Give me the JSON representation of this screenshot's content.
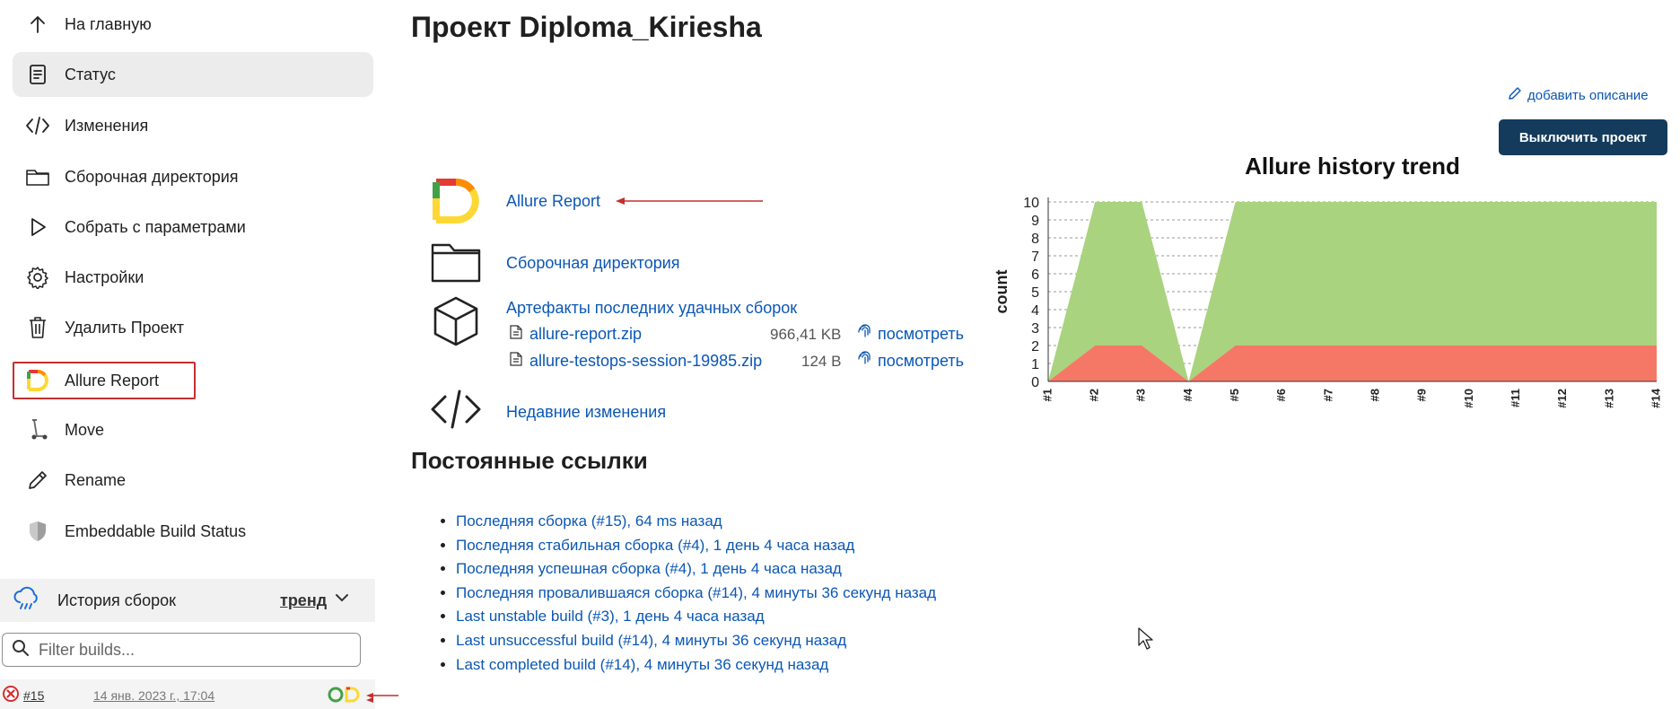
{
  "sidebar": {
    "items": [
      {
        "label": "На главную",
        "icon": "arrow-up-icon"
      },
      {
        "label": "Статус",
        "icon": "status-doc-icon",
        "active": true
      },
      {
        "label": "Изменения",
        "icon": "code-icon"
      },
      {
        "label": "Сборочная директория",
        "icon": "folder-icon"
      },
      {
        "label": "Собрать с параметрами",
        "icon": "play-icon"
      },
      {
        "label": "Настройки",
        "icon": "gear-icon"
      },
      {
        "label": "Удалить Проект",
        "icon": "trash-icon"
      },
      {
        "label": "Allure Report",
        "icon": "allure-logo-icon",
        "highlighted": true
      },
      {
        "label": "Move",
        "icon": "scooter-icon"
      },
      {
        "label": "Rename",
        "icon": "pencil-icon"
      },
      {
        "label": "Embeddable Build Status",
        "icon": "shield-icon"
      }
    ],
    "history": {
      "title": "История сборок",
      "trend_label": "тренд",
      "filter_placeholder": "Filter builds...",
      "builds": [
        {
          "number": "#15",
          "date": "14 янв. 2023 г., 17:04",
          "status": "failed"
        }
      ]
    }
  },
  "main": {
    "title": "Проект Diploma_Kiriesha",
    "add_description": "добавить описание",
    "disable_button": "Выключить проект",
    "links": {
      "allure_report": "Allure Report",
      "workspace": "Сборочная директория",
      "artifacts_title": "Артефакты последних удачных сборок",
      "recent_changes": "Недавние изменения"
    },
    "artifacts": [
      {
        "name": "allure-report.zip",
        "size": "966,41 KB",
        "view": "посмотреть"
      },
      {
        "name": "allure-testops-session-19985.zip",
        "size": "124 B",
        "view": "посмотреть"
      }
    ],
    "permalinks_title": "Постоянные ссылки",
    "permalinks": [
      "Последняя сборка (#15), 64 ms назад",
      "Последняя стабильная сборка (#4), 1 день 4 часа назад",
      "Последняя успешная сборка (#4), 1 день 4 часа назад",
      "Последняя провалившаяся сборка (#14), 4 минуты 36 секунд назад",
      "Last unstable build (#3), 1 день 4 часа назад",
      "Last unsuccessful build (#14), 4 минуты 36 секунд назад",
      "Last completed build (#14), 4 минуты 36 секунд назад"
    ]
  },
  "colors": {
    "link": "#0b57b5",
    "button_bg": "#143b5c",
    "passed": "#a9d37e",
    "failed": "#f57866",
    "annotation_arrow": "#c42f2f"
  },
  "chart_data": {
    "type": "area",
    "title": "Allure history trend",
    "xlabel": "",
    "ylabel": "count",
    "x": [
      "#1",
      "#2",
      "#3",
      "#4",
      "#5",
      "#6",
      "#7",
      "#8",
      "#9",
      "#10",
      "#11",
      "#12",
      "#13",
      "#14"
    ],
    "ylim": [
      0,
      10
    ],
    "yticks": [
      0,
      1,
      2,
      3,
      4,
      5,
      6,
      7,
      8,
      9,
      10
    ],
    "stacked": true,
    "series": [
      {
        "key": "failed",
        "values": [
          0,
          2,
          2,
          0,
          2,
          2,
          2,
          2,
          2,
          2,
          2,
          2,
          2,
          2
        ]
      },
      {
        "key": "passed",
        "values": [
          0,
          8,
          8,
          0,
          8,
          8,
          8,
          8,
          8,
          8,
          8,
          8,
          8,
          8
        ]
      }
    ],
    "grid": "horizontal-dashed"
  }
}
